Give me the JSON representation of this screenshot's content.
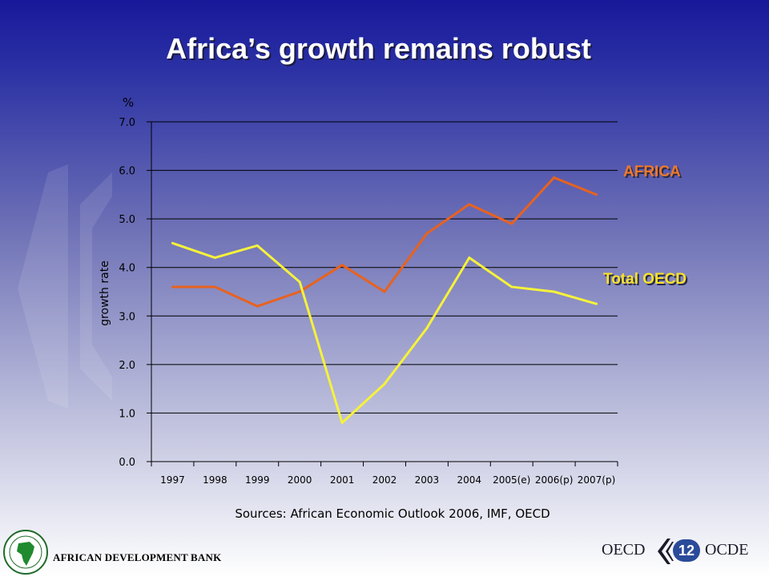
{
  "slide": {
    "title": "Africa’s growth remains robust",
    "sources": "Sources: African Economic Outlook 2006, IMF, OECD",
    "footer_org": "AFRICAN DEVELOPMENT BANK",
    "footer_oecd": "OECD",
    "footer_ocde": "OCDE",
    "page_number": "12"
  },
  "colors": {
    "africa": "#e8621e",
    "oecd": "#f6f23a",
    "africa_label": "#f0782a",
    "oecd_label": "#f7e22a"
  },
  "chart_data": {
    "type": "line",
    "categories": [
      "1997",
      "1998",
      "1999",
      "2000",
      "2001",
      "2002",
      "2003",
      "2004",
      "2005(e)",
      "2006(p)",
      "2007(p)"
    ],
    "ylabel": "growth rate",
    "yunit": "%",
    "ylim": [
      0,
      7
    ],
    "yticks": [
      "0.0",
      "1.0",
      "2.0",
      "3.0",
      "4.0",
      "5.0",
      "6.0",
      "7.0"
    ],
    "grid": true,
    "legend": "right, as line labels",
    "series": [
      {
        "name": "AFRICA",
        "values": [
          3.6,
          3.6,
          3.2,
          3.5,
          4.05,
          3.5,
          4.7,
          5.3,
          4.9,
          5.85,
          5.5
        ]
      },
      {
        "name": "Total OECD",
        "values": [
          4.5,
          4.2,
          4.45,
          3.7,
          0.8,
          1.6,
          2.75,
          4.2,
          3.6,
          3.5,
          3.25
        ]
      }
    ]
  }
}
